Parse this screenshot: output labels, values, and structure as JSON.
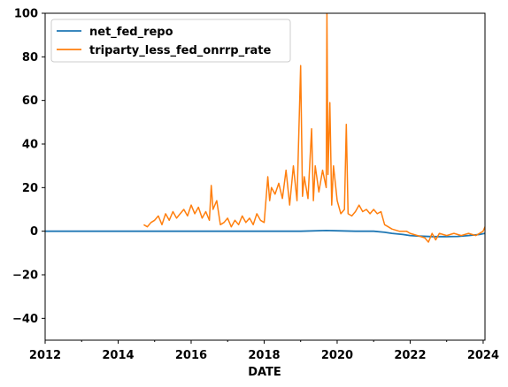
{
  "chart_data": {
    "type": "line",
    "title": "",
    "xlabel": "DATE",
    "ylabel": "",
    "xlim": [
      2012.0,
      2024.05
    ],
    "ylim": [
      -50,
      100
    ],
    "x_ticks": [
      2012,
      2014,
      2016,
      2018,
      2020,
      2022,
      2024
    ],
    "x_tick_labels": [
      "2012",
      "2014",
      "2016",
      "2018",
      "2020",
      "2022",
      "2024"
    ],
    "y_ticks": [
      -40,
      -20,
      0,
      20,
      40,
      60,
      80,
      100
    ],
    "y_tick_labels": [
      "−40",
      "−20",
      "0",
      "20",
      "40",
      "60",
      "80",
      "100"
    ],
    "grid": false,
    "legend_position": "top-left",
    "series": [
      {
        "name": "net_fed_repo",
        "color": "#1f77b4",
        "x": [
          2012.0,
          2013.0,
          2014.0,
          2015.0,
          2016.0,
          2017.0,
          2018.0,
          2019.0,
          2019.7,
          2020.0,
          2020.5,
          2021.0,
          2021.3,
          2021.5,
          2021.8,
          2022.0,
          2022.3,
          2022.6,
          2023.0,
          2023.3,
          2023.6,
          2023.9,
          2024.05
        ],
        "values": [
          0,
          0,
          0,
          0,
          0,
          0,
          0,
          0,
          0.3,
          0.2,
          0,
          0,
          -0.5,
          -1.0,
          -1.5,
          -2.0,
          -2.3,
          -2.5,
          -2.5,
          -2.4,
          -2.0,
          -1.5,
          -1.0
        ]
      },
      {
        "name": "triparty_less_fed_onrrp_rate",
        "color": "#ff7f0e",
        "x": [
          2014.7,
          2014.8,
          2014.9,
          2015.0,
          2015.1,
          2015.2,
          2015.3,
          2015.4,
          2015.5,
          2015.6,
          2015.7,
          2015.8,
          2015.9,
          2016.0,
          2016.1,
          2016.2,
          2016.3,
          2016.4,
          2016.5,
          2016.55,
          2016.6,
          2016.7,
          2016.8,
          2016.9,
          2017.0,
          2017.1,
          2017.2,
          2017.3,
          2017.4,
          2017.5,
          2017.6,
          2017.7,
          2017.8,
          2017.9,
          2018.0,
          2018.1,
          2018.15,
          2018.2,
          2018.3,
          2018.4,
          2018.5,
          2018.6,
          2018.7,
          2018.8,
          2018.9,
          2019.0,
          2019.05,
          2019.1,
          2019.2,
          2019.3,
          2019.35,
          2019.4,
          2019.5,
          2019.6,
          2019.7,
          2019.72,
          2019.75,
          2019.8,
          2019.85,
          2019.9,
          2020.0,
          2020.1,
          2020.2,
          2020.25,
          2020.3,
          2020.4,
          2020.5,
          2020.6,
          2020.7,
          2020.8,
          2020.9,
          2021.0,
          2021.1,
          2021.2,
          2021.3,
          2021.4,
          2021.5,
          2021.7,
          2021.9,
          2022.0,
          2022.2,
          2022.4,
          2022.5,
          2022.6,
          2022.7,
          2022.8,
          2023.0,
          2023.2,
          2023.4,
          2023.6,
          2023.8,
          2024.0,
          2024.05
        ],
        "values": [
          3,
          2,
          4,
          5,
          7,
          3,
          8,
          5,
          9,
          6,
          8,
          10,
          7,
          12,
          8,
          11,
          6,
          9,
          5,
          21,
          10,
          14,
          3,
          4,
          6,
          2,
          5,
          3,
          7,
          4,
          6,
          3,
          8,
          5,
          4,
          25,
          14,
          20,
          17,
          22,
          15,
          28,
          12,
          30,
          14,
          76,
          16,
          25,
          15,
          47,
          14,
          30,
          18,
          28,
          20,
          100,
          26,
          59,
          12,
          30,
          14,
          8,
          10,
          49,
          8,
          7,
          9,
          12,
          9,
          10,
          8,
          10,
          8,
          9,
          3,
          2,
          1,
          0,
          0,
          -1,
          -2,
          -3,
          -5,
          -1,
          -4,
          -1,
          -2,
          -1,
          -2,
          -1,
          -2,
          0,
          2
        ]
      }
    ]
  }
}
